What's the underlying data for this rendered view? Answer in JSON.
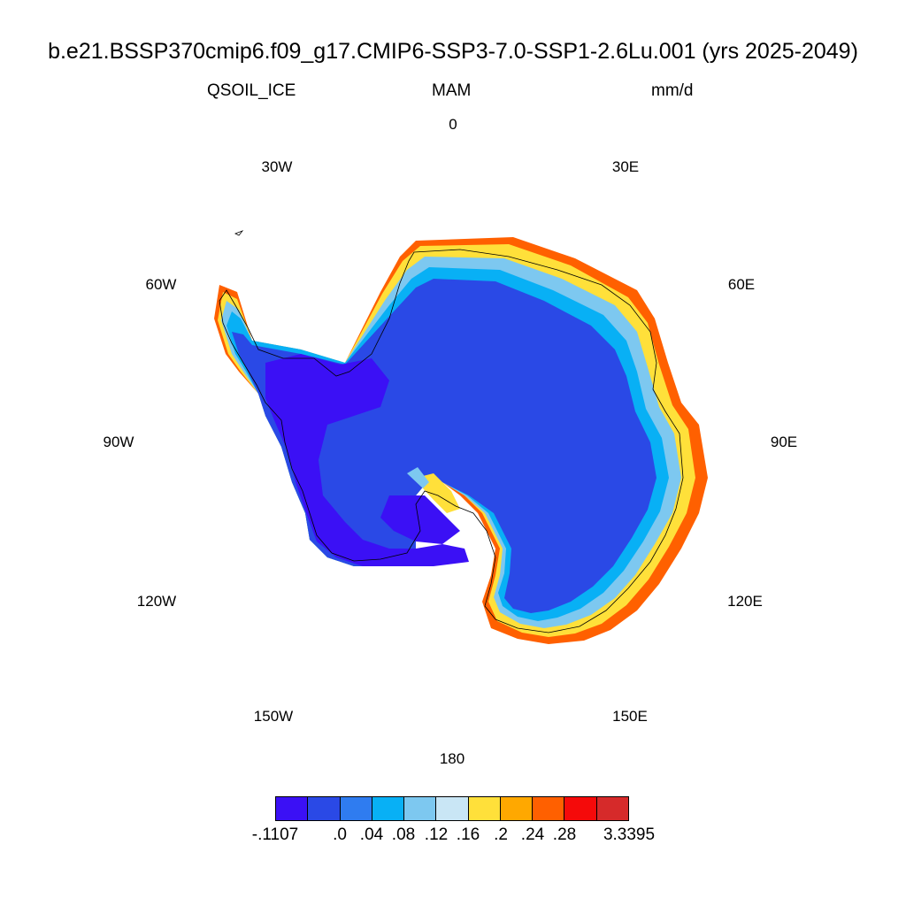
{
  "title": "b.e21.BSSP370cmip6.f09_g17.CMIP6-SSP3-7.0-SSP1-2.6Lu.001 (yrs 2025-2049)",
  "variable": "QSOIL_ICE",
  "season": "MAM",
  "units": "mm/d",
  "longitude_labels": [
    "0",
    "30E",
    "60E",
    "90E",
    "120E",
    "150E",
    "180",
    "150W",
    "120W",
    "90W",
    "60W",
    "30W"
  ],
  "colorbar": {
    "colors": [
      "#3b10f5",
      "#2a49e6",
      "#2f7cf0",
      "#08b0f5",
      "#7dc8f0",
      "#c9e6f5",
      "#ffe03a",
      "#ffa800",
      "#ff6000",
      "#f50a0a",
      "#d62a2a"
    ],
    "labels": [
      "-.1107",
      ".0",
      ".04",
      ".08",
      ".12",
      ".16",
      ".2",
      ".24",
      ".28",
      "3.3395"
    ]
  }
}
